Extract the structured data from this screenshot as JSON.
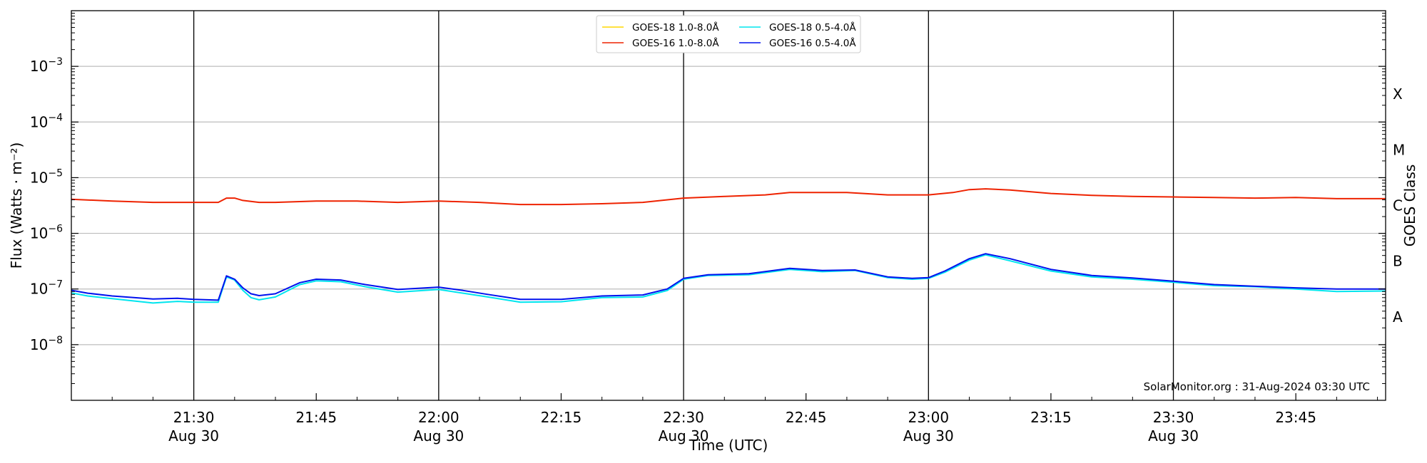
{
  "chart_data": {
    "type": "line",
    "xlabel": "Time (UTC)",
    "ylabel": "Flux (Watts · m⁻²)",
    "y2label": "GOES Class",
    "y_scale": "log",
    "ylim": [
      1e-09,
      0.01
    ],
    "xlim": [
      "2024-08-30 21:15",
      "2024-08-30 23:56"
    ],
    "x_ticks": [
      {
        "time": "2024-08-30 21:30",
        "label": "21:30",
        "date": "Aug 30"
      },
      {
        "time": "2024-08-30 21:45",
        "label": "21:45",
        "date": ""
      },
      {
        "time": "2024-08-30 22:00",
        "label": "22:00",
        "date": "Aug 30"
      },
      {
        "time": "2024-08-30 22:15",
        "label": "22:15",
        "date": ""
      },
      {
        "time": "2024-08-30 22:30",
        "label": "22:30",
        "date": "Aug 30"
      },
      {
        "time": "2024-08-30 22:45",
        "label": "22:45",
        "date": ""
      },
      {
        "time": "2024-08-30 23:00",
        "label": "23:00",
        "date": "Aug 30"
      },
      {
        "time": "2024-08-30 23:15",
        "label": "23:15",
        "date": ""
      },
      {
        "time": "2024-08-30 23:30",
        "label": "23:30",
        "date": "Aug 30"
      },
      {
        "time": "2024-08-30 23:45",
        "label": "23:45",
        "date": ""
      }
    ],
    "y_ticks": [
      {
        "value": 1e-08,
        "base": "10",
        "exp": "−8"
      },
      {
        "value": 1e-07,
        "base": "10",
        "exp": "−7"
      },
      {
        "value": 1e-06,
        "base": "10",
        "exp": "−6"
      },
      {
        "value": 1e-05,
        "base": "10",
        "exp": "−5"
      },
      {
        "value": 0.0001,
        "base": "10",
        "exp": "−4"
      },
      {
        "value": 0.001,
        "base": "10",
        "exp": "−3"
      }
    ],
    "goes_classes": [
      {
        "label": "A",
        "value": 3.16e-08
      },
      {
        "label": "B",
        "value": 3.16e-07
      },
      {
        "label": "C",
        "value": 3.16e-06
      },
      {
        "label": "M",
        "value": 3.16e-05
      },
      {
        "label": "X",
        "value": 0.000316
      }
    ],
    "grid": "horizontal at decades, vertical at 30-min",
    "legend_position": "top-center",
    "watermark": "SolarMonitor.org : 31-Aug-2024 03:30 UTC",
    "series": [
      {
        "name": "GOES-18 1.0-8.0Å",
        "color": "#ffd700",
        "times": [],
        "values": []
      },
      {
        "name": "GOES-16 1.0-8.0Å",
        "color": "#ee2200",
        "times": [
          "2024-08-30 21:15",
          "2024-08-30 21:20",
          "2024-08-30 21:25",
          "2024-08-30 21:30",
          "2024-08-30 21:33",
          "2024-08-30 21:34",
          "2024-08-30 21:35",
          "2024-08-30 21:36",
          "2024-08-30 21:38",
          "2024-08-30 21:40",
          "2024-08-30 21:45",
          "2024-08-30 21:50",
          "2024-08-30 21:55",
          "2024-08-30 22:00",
          "2024-08-30 22:05",
          "2024-08-30 22:10",
          "2024-08-30 22:15",
          "2024-08-30 22:20",
          "2024-08-30 22:25",
          "2024-08-30 22:30",
          "2024-08-30 22:35",
          "2024-08-30 22:40",
          "2024-08-30 22:43",
          "2024-08-30 22:50",
          "2024-08-30 22:55",
          "2024-08-30 23:00",
          "2024-08-30 23:03",
          "2024-08-30 23:05",
          "2024-08-30 23:07",
          "2024-08-30 23:10",
          "2024-08-30 23:15",
          "2024-08-30 23:20",
          "2024-08-30 23:25",
          "2024-08-30 23:30",
          "2024-08-30 23:35",
          "2024-08-30 23:40",
          "2024-08-30 23:45",
          "2024-08-30 23:50",
          "2024-08-30 23:56"
        ],
        "values": [
          4.1e-06,
          3.8e-06,
          3.6e-06,
          3.6e-06,
          3.6e-06,
          4.3e-06,
          4.3e-06,
          3.9e-06,
          3.6e-06,
          3.6e-06,
          3.8e-06,
          3.8e-06,
          3.6e-06,
          3.8e-06,
          3.6e-06,
          3.3e-06,
          3.3e-06,
          3.4e-06,
          3.6e-06,
          4.3e-06,
          4.6e-06,
          4.9e-06,
          5.4e-06,
          5.4e-06,
          4.9e-06,
          4.9e-06,
          5.4e-06,
          6.1e-06,
          6.3e-06,
          6e-06,
          5.2e-06,
          4.8e-06,
          4.6e-06,
          4.5e-06,
          4.4e-06,
          4.3e-06,
          4.4e-06,
          4.2e-06,
          4.2e-06
        ]
      },
      {
        "name": "GOES-18 0.5-4.0Å",
        "color": "#00e5ee",
        "times": [
          "2024-08-30 21:15",
          "2024-08-30 21:17",
          "2024-08-30 21:20",
          "2024-08-30 21:25",
          "2024-08-30 21:28",
          "2024-08-30 21:30",
          "2024-08-30 21:33",
          "2024-08-30 21:34",
          "2024-08-30 21:35",
          "2024-08-30 21:36",
          "2024-08-30 21:37",
          "2024-08-30 21:38",
          "2024-08-30 21:40",
          "2024-08-30 21:43",
          "2024-08-30 21:45",
          "2024-08-30 21:48",
          "2024-08-30 21:51",
          "2024-08-30 21:55",
          "2024-08-30 22:00",
          "2024-08-30 22:03",
          "2024-08-30 22:06",
          "2024-08-30 22:10",
          "2024-08-30 22:15",
          "2024-08-30 22:20",
          "2024-08-30 22:25",
          "2024-08-30 22:28",
          "2024-08-30 22:30",
          "2024-08-30 22:33",
          "2024-08-30 22:38",
          "2024-08-30 22:43",
          "2024-08-30 22:47",
          "2024-08-30 22:51",
          "2024-08-30 22:55",
          "2024-08-30 22:58",
          "2024-08-30 23:00",
          "2024-08-30 23:02",
          "2024-08-30 23:05",
          "2024-08-30 23:07",
          "2024-08-30 23:10",
          "2024-08-30 23:15",
          "2024-08-30 23:20",
          "2024-08-30 23:25",
          "2024-08-30 23:30",
          "2024-08-30 23:35",
          "2024-08-30 23:40",
          "2024-08-30 23:45",
          "2024-08-30 23:50",
          "2024-08-30 23:56"
        ],
        "values": [
          8.5e-08,
          7.5e-08,
          6.7e-08,
          5.6e-08,
          6e-08,
          5.8e-08,
          5.8e-08,
          1.65e-07,
          1.45e-07,
          9.5e-08,
          7e-08,
          6.4e-08,
          7.2e-08,
          1.2e-07,
          1.4e-07,
          1.35e-07,
          1.1e-07,
          8.8e-08,
          9.8e-08,
          8.4e-08,
          7.2e-08,
          5.8e-08,
          5.9e-08,
          7e-08,
          7.2e-08,
          9.4e-08,
          1.5e-07,
          1.75e-07,
          1.8e-07,
          2.25e-07,
          2.05e-07,
          2.15e-07,
          1.6e-07,
          1.5e-07,
          1.55e-07,
          2e-07,
          3.3e-07,
          4.1e-07,
          3.2e-07,
          2.1e-07,
          1.65e-07,
          1.5e-07,
          1.32e-07,
          1.15e-07,
          1.1e-07,
          1e-07,
          9e-08,
          9.2e-08
        ]
      },
      {
        "name": "GOES-16 0.5-4.0Å",
        "color": "#0011ee",
        "times": [
          "2024-08-30 21:15",
          "2024-08-30 21:17",
          "2024-08-30 21:20",
          "2024-08-30 21:25",
          "2024-08-30 21:28",
          "2024-08-30 21:30",
          "2024-08-30 21:33",
          "2024-08-30 21:34",
          "2024-08-30 21:35",
          "2024-08-30 21:36",
          "2024-08-30 21:37",
          "2024-08-30 21:38",
          "2024-08-30 21:40",
          "2024-08-30 21:43",
          "2024-08-30 21:45",
          "2024-08-30 21:48",
          "2024-08-30 21:51",
          "2024-08-30 21:55",
          "2024-08-30 22:00",
          "2024-08-30 22:03",
          "2024-08-30 22:06",
          "2024-08-30 22:10",
          "2024-08-30 22:15",
          "2024-08-30 22:20",
          "2024-08-30 22:25",
          "2024-08-30 22:28",
          "2024-08-30 22:30",
          "2024-08-30 22:33",
          "2024-08-30 22:38",
          "2024-08-30 22:43",
          "2024-08-30 22:47",
          "2024-08-30 22:51",
          "2024-08-30 22:55",
          "2024-08-30 22:58",
          "2024-08-30 23:00",
          "2024-08-30 23:02",
          "2024-08-30 23:05",
          "2024-08-30 23:07",
          "2024-08-30 23:10",
          "2024-08-30 23:15",
          "2024-08-30 23:20",
          "2024-08-30 23:25",
          "2024-08-30 23:30",
          "2024-08-30 23:35",
          "2024-08-30 23:40",
          "2024-08-30 23:45",
          "2024-08-30 23:50",
          "2024-08-30 23:56"
        ],
        "values": [
          9.5e-08,
          8.4e-08,
          7.5e-08,
          6.6e-08,
          6.8e-08,
          6.5e-08,
          6.3e-08,
          1.72e-07,
          1.5e-07,
          1.05e-07,
          8.2e-08,
          7.6e-08,
          8.2e-08,
          1.3e-07,
          1.5e-07,
          1.45e-07,
          1.2e-07,
          9.8e-08,
          1.08e-07,
          9.4e-08,
          8e-08,
          6.5e-08,
          6.5e-08,
          7.5e-08,
          7.8e-08,
          1e-07,
          1.55e-07,
          1.8e-07,
          1.88e-07,
          2.35e-07,
          2.15e-07,
          2.2e-07,
          1.65e-07,
          1.55e-07,
          1.6e-07,
          2.1e-07,
          3.5e-07,
          4.3e-07,
          3.5e-07,
          2.25e-07,
          1.75e-07,
          1.58e-07,
          1.38e-07,
          1.2e-07,
          1.12e-07,
          1.05e-07,
          1e-07,
          1e-07
        ]
      }
    ]
  }
}
